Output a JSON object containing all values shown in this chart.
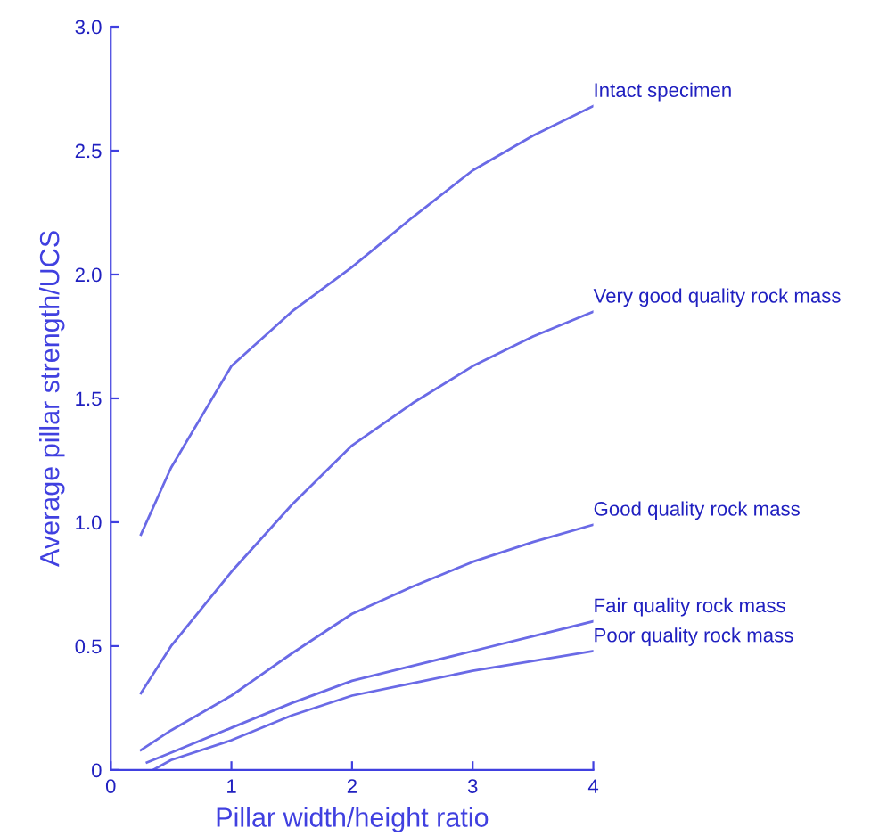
{
  "chart_data": {
    "type": "line",
    "xlabel": "Pillar width/height ratio",
    "ylabel": "Average pillar strength/UCS",
    "xlim": [
      0,
      4
    ],
    "ylim": [
      0,
      3.0
    ],
    "xticks": [
      0,
      1,
      2,
      3,
      4
    ],
    "yticks": [
      0,
      0.5,
      {
        "value": 1,
        "label": "1.0"
      },
      1.5,
      {
        "value": 2,
        "label": "2.0"
      },
      2.5,
      {
        "value": 3,
        "label": "3.0"
      }
    ],
    "grid": false,
    "legend": false,
    "marker": "none",
    "line_style": "solid",
    "series": [
      {
        "name": "Intact specimen",
        "color": "#6a6ae6",
        "x": [
          0.25,
          0.5,
          1,
          1.5,
          2,
          2.5,
          3,
          3.5,
          4
        ],
        "values": [
          0.95,
          1.22,
          1.63,
          1.85,
          2.03,
          2.23,
          2.42,
          2.56,
          2.68
        ]
      },
      {
        "name": "Very good quality rock mass",
        "color": "#6a6ae6",
        "x": [
          0.25,
          0.5,
          1,
          1.5,
          2,
          2.5,
          3,
          3.5,
          4
        ],
        "values": [
          0.31,
          0.5,
          0.8,
          1.07,
          1.31,
          1.48,
          1.63,
          1.75,
          1.85
        ]
      },
      {
        "name": "Good quality rock mass",
        "color": "#6a6ae6",
        "x": [
          0.25,
          0.5,
          1,
          1.5,
          2,
          2.5,
          3,
          3.5,
          4
        ],
        "values": [
          0.08,
          0.16,
          0.3,
          0.47,
          0.63,
          0.74,
          0.84,
          0.92,
          0.99
        ]
      },
      {
        "name": "Fair quality rock mass",
        "color": "#6a6ae6",
        "x": [
          0.3,
          0.5,
          1,
          1.5,
          2,
          2.5,
          3,
          3.5,
          4
        ],
        "values": [
          0.03,
          0.07,
          0.17,
          0.27,
          0.36,
          0.42,
          0.48,
          0.54,
          0.6
        ]
      },
      {
        "name": "Poor quality rock mass",
        "color": "#6a6ae6",
        "x": [
          0.35,
          0.5,
          1,
          1.5,
          2,
          2.5,
          3,
          3.5,
          4
        ],
        "values": [
          0.0,
          0.04,
          0.12,
          0.22,
          0.3,
          0.35,
          0.4,
          0.44,
          0.48
        ]
      }
    ]
  }
}
